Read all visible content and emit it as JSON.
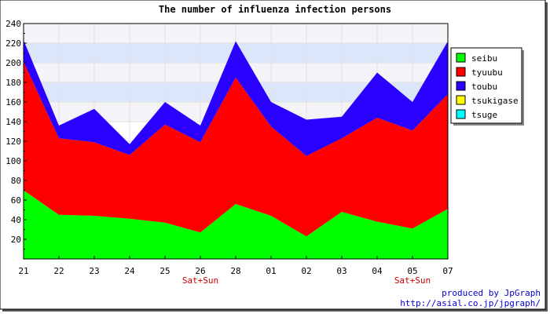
{
  "chart_data": {
    "type": "area",
    "stacked": true,
    "title": "The number of influenza infection persons",
    "categories": [
      "21",
      "22",
      "23",
      "24",
      "25",
      "26",
      "28",
      "01",
      "02",
      "03",
      "04",
      "05",
      "07"
    ],
    "weekend_labels": [
      "",
      "",
      "",
      "",
      "",
      "Sat+Sun",
      "",
      "",
      "",
      "",
      "",
      "Sat+Sun",
      ""
    ],
    "ylim": [
      0,
      240
    ],
    "yticks": [
      20,
      40,
      60,
      80,
      100,
      120,
      140,
      160,
      180,
      200,
      220,
      240
    ],
    "yband": [
      140,
      240
    ],
    "grid": true,
    "legend_position": "right",
    "series": [
      {
        "name": "seibu",
        "color": "#00ff00",
        "values": [
          70,
          45,
          44,
          41,
          37,
          27,
          56,
          44,
          23,
          48,
          38,
          31,
          51
        ]
      },
      {
        "name": "tyuubu",
        "color": "#ff0000",
        "values": [
          131,
          78,
          75,
          65,
          100,
          92,
          129,
          91,
          82,
          75,
          106,
          100,
          117
        ]
      },
      {
        "name": "toubu",
        "color": "#2a00ff",
        "values": [
          22,
          13,
          34,
          11,
          23,
          17,
          37,
          25,
          37,
          22,
          46,
          29,
          54
        ]
      },
      {
        "name": "tsukigase",
        "color": "#ffff00",
        "values": [
          0,
          0,
          0,
          0,
          0,
          0,
          0,
          0,
          0,
          0,
          0,
          0,
          0
        ]
      },
      {
        "name": "tsuge",
        "color": "#00ffff",
        "values": [
          0,
          0,
          0,
          0,
          0,
          0,
          0,
          0,
          0,
          0,
          0,
          0,
          0
        ]
      }
    ]
  },
  "footer": {
    "produced": "produced by JpGraph",
    "url": "http://asial.co.jp/jpgraph/"
  }
}
